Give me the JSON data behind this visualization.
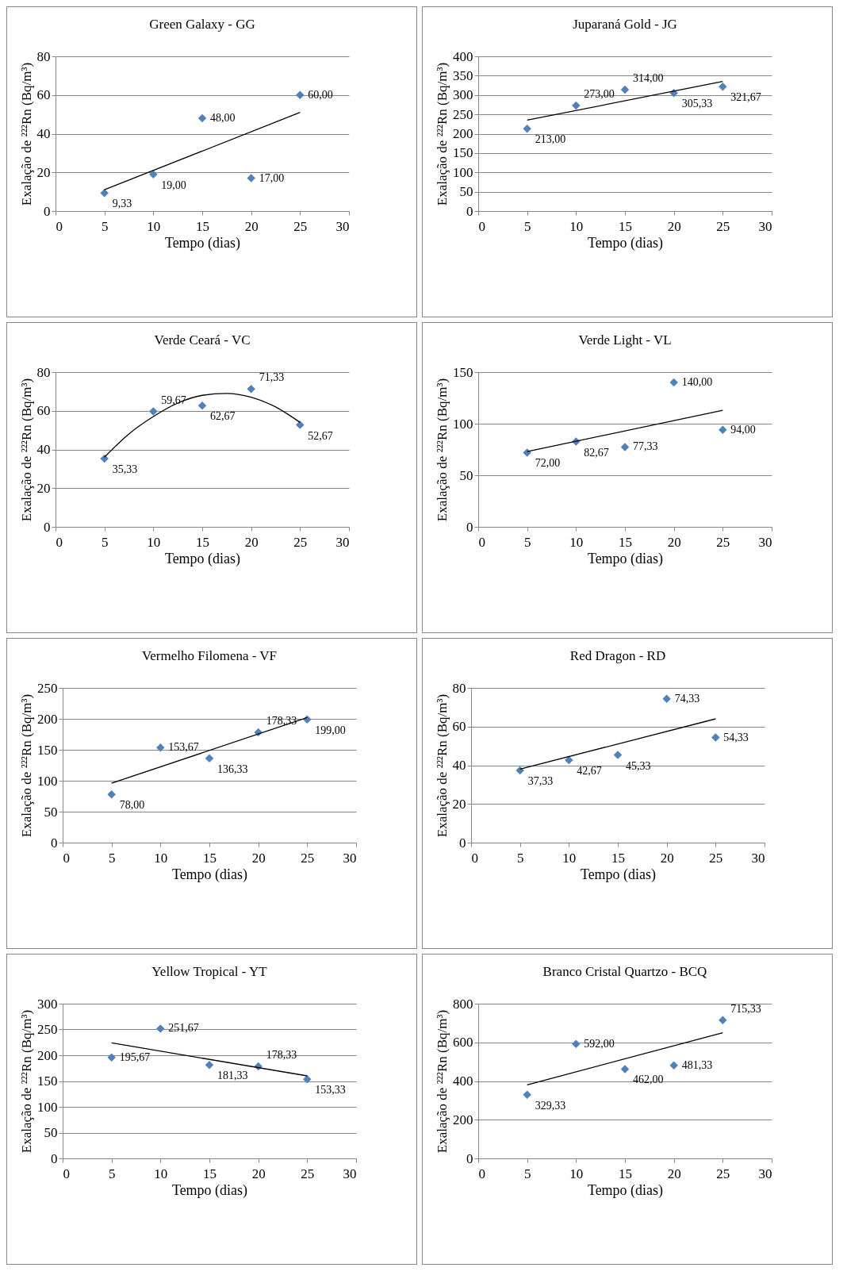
{
  "chart_data": [
    {
      "type": "scatter",
      "title": "Green Galaxy - GG",
      "xlabel": "Tempo (dias)",
      "ylabel": "Exalação de ²²²Rn (Bq/m³)",
      "x": [
        5,
        10,
        15,
        20,
        25
      ],
      "xlim": [
        0,
        30
      ],
      "xticks": [
        0,
        5,
        10,
        15,
        20,
        25,
        30
      ],
      "ylim": [
        0,
        80
      ],
      "yticks": [
        0,
        20,
        40,
        60,
        80
      ],
      "grid": "y",
      "series": [
        {
          "marker": "diamond",
          "color": "#4f81bd",
          "values": [
            9.33,
            19,
            48,
            17,
            60
          ],
          "value_labels": [
            "9,33",
            "19,00",
            "48,00",
            "17,00",
            "60,00"
          ]
        },
        {
          "type": "line",
          "color": "#000000",
          "x": [
            5,
            25
          ],
          "values": [
            11,
            51
          ]
        }
      ]
    },
    {
      "type": "scatter",
      "title": "Juparaná Gold - JG",
      "xlabel": "Tempo (dias)",
      "ylabel": "Exalação de ²²²Rn (Bq/m³)",
      "x": [
        5,
        10,
        15,
        20,
        25
      ],
      "xlim": [
        0,
        30
      ],
      "xticks": [
        0,
        5,
        10,
        15,
        20,
        25,
        30
      ],
      "ylim": [
        0,
        400
      ],
      "yticks": [
        0,
        50,
        100,
        150,
        200,
        250,
        300,
        350,
        400
      ],
      "grid": "y",
      "series": [
        {
          "marker": "diamond",
          "color": "#4f81bd",
          "values": [
            213,
            273,
            314,
            305.33,
            321.67
          ],
          "value_labels": [
            "213,00",
            "273,00",
            "314,00",
            "305,33",
            "321,67"
          ]
        },
        {
          "type": "line",
          "color": "#000000",
          "x": [
            5,
            25
          ],
          "values": [
            235,
            335
          ]
        }
      ]
    },
    {
      "type": "scatter",
      "title": "Verde Ceará - VC",
      "xlabel": "Tempo (dias)",
      "ylabel": "Exalação de ²²²Rn (Bq/m³)",
      "x": [
        5,
        10,
        15,
        20,
        25
      ],
      "xlim": [
        0,
        30
      ],
      "xticks": [
        0,
        5,
        10,
        15,
        20,
        25,
        30
      ],
      "ylim": [
        0,
        80
      ],
      "yticks": [
        0,
        20,
        40,
        60,
        80
      ],
      "grid": "y",
      "series": [
        {
          "marker": "diamond",
          "color": "#4f81bd",
          "values": [
            35.33,
            59.67,
            62.67,
            71.33,
            52.67
          ],
          "value_labels": [
            "35,33",
            "59,67",
            "62,67",
            "71,33",
            "52,67"
          ]
        },
        {
          "type": "line",
          "color": "#000000",
          "x": [
            5,
            7.5,
            10,
            12.5,
            15,
            17.5,
            20,
            22.5,
            25
          ],
          "values": [
            36,
            48,
            57,
            64,
            68,
            69,
            67,
            62,
            54
          ]
        }
      ]
    },
    {
      "type": "scatter",
      "title": "Verde Light - VL",
      "xlabel": "Tempo (dias)",
      "ylabel": "Exalação de ²²²Rn (Bq/m³)",
      "x": [
        5,
        10,
        15,
        20,
        25
      ],
      "xlim": [
        0,
        30
      ],
      "xticks": [
        0,
        5,
        10,
        15,
        20,
        25,
        30
      ],
      "ylim": [
        0,
        150
      ],
      "yticks": [
        0,
        50,
        100,
        150
      ],
      "grid": "y",
      "series": [
        {
          "marker": "diamond",
          "color": "#4f81bd",
          "values": [
            72,
            82.67,
            77.33,
            140,
            94
          ],
          "value_labels": [
            "72,00",
            "82,67",
            "77,33",
            "140,00",
            "94,00"
          ]
        },
        {
          "type": "line",
          "color": "#000000",
          "x": [
            5,
            25
          ],
          "values": [
            73,
            113
          ]
        }
      ]
    },
    {
      "type": "scatter",
      "title": "Vermelho Filomena - VF",
      "xlabel": "Tempo (dias)",
      "ylabel": "Exalação de ²²²Rn (Bq/m³)",
      "x": [
        5,
        10,
        15,
        20,
        25
      ],
      "xlim": [
        0,
        30
      ],
      "xticks": [
        0,
        5,
        10,
        15,
        20,
        25,
        30
      ],
      "ylim": [
        0,
        250
      ],
      "yticks": [
        0,
        50,
        100,
        150,
        200,
        250
      ],
      "grid": "y",
      "series": [
        {
          "marker": "diamond",
          "color": "#4f81bd",
          "values": [
            78,
            153.67,
            136.33,
            178.33,
            199
          ],
          "value_labels": [
            "78,00",
            "153,67",
            "136,33",
            "178,33",
            "199,00"
          ]
        },
        {
          "type": "line",
          "color": "#000000",
          "x": [
            5,
            25
          ],
          "values": [
            96,
            202
          ]
        }
      ]
    },
    {
      "type": "scatter",
      "title": "Red Dragon - RD",
      "xlabel": "Tempo (dias)",
      "ylabel": "Exalação de ²²²Rn (Bq/m³)",
      "x": [
        5,
        10,
        15,
        20,
        25
      ],
      "xlim": [
        0,
        30
      ],
      "xticks": [
        0,
        5,
        10,
        15,
        20,
        25,
        30
      ],
      "ylim": [
        0,
        80
      ],
      "yticks": [
        0,
        20,
        40,
        60,
        80
      ],
      "grid": "y",
      "series": [
        {
          "marker": "diamond",
          "color": "#4f81bd",
          "values": [
            37.33,
            42.67,
            45.33,
            74.33,
            54.33
          ],
          "value_labels": [
            "37,33",
            "42,67",
            "45,33",
            "74,33",
            "54,33"
          ]
        },
        {
          "type": "line",
          "color": "#000000",
          "x": [
            5,
            25
          ],
          "values": [
            38,
            64
          ]
        }
      ]
    },
    {
      "type": "scatter",
      "title": "Yellow Tropical - YT",
      "xlabel": "Tempo (dias)",
      "ylabel": "Exalação de ²²²Rn (Bq/m³)",
      "x": [
        5,
        10,
        15,
        20,
        25
      ],
      "xlim": [
        0,
        30
      ],
      "xticks": [
        0,
        5,
        10,
        15,
        20,
        25,
        30
      ],
      "ylim": [
        0,
        300
      ],
      "yticks": [
        0,
        50,
        100,
        150,
        200,
        250,
        300
      ],
      "grid": "y",
      "series": [
        {
          "marker": "diamond",
          "color": "#4f81bd",
          "values": [
            195.67,
            251.67,
            181.33,
            178.33,
            153.33
          ],
          "value_labels": [
            "195,67",
            "251,67",
            "181,33",
            "178,33",
            "153,33"
          ]
        },
        {
          "type": "line",
          "color": "#000000",
          "x": [
            5,
            25
          ],
          "values": [
            224,
            160
          ]
        }
      ]
    },
    {
      "type": "scatter",
      "title": "Branco Cristal Quartzo - BCQ",
      "xlabel": "Tempo (dias)",
      "ylabel": "Exalação de ²²²Rn (Bq/m³)",
      "x": [
        5,
        10,
        15,
        20,
        25
      ],
      "xlim": [
        0,
        30
      ],
      "xticks": [
        0,
        5,
        10,
        15,
        20,
        25,
        30
      ],
      "ylim": [
        0,
        800
      ],
      "yticks": [
        0,
        200,
        400,
        600,
        800
      ],
      "grid": "y",
      "series": [
        {
          "marker": "diamond",
          "color": "#4f81bd",
          "values": [
            329.33,
            592,
            462,
            481.33,
            715.33
          ],
          "value_labels": [
            "329,33",
            "592,00",
            "462,00",
            "481,33",
            "715,33"
          ]
        },
        {
          "type": "line",
          "color": "#000000",
          "x": [
            5,
            25
          ],
          "values": [
            380,
            650
          ]
        }
      ]
    }
  ]
}
